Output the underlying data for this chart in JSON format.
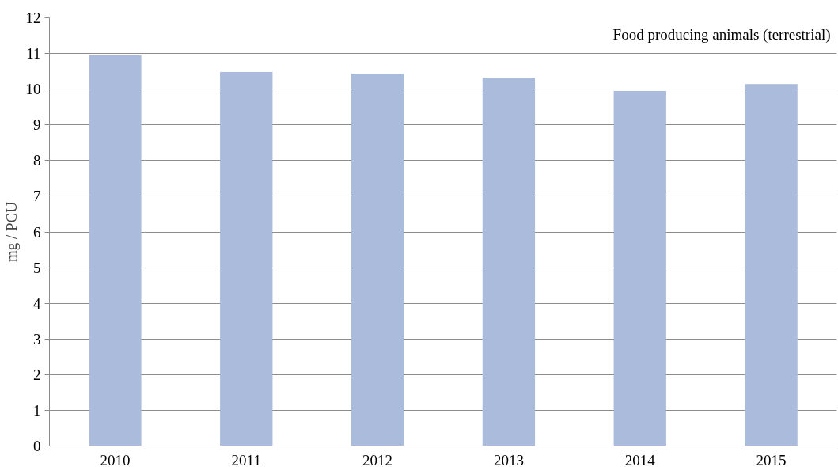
{
  "chart_data": {
    "type": "bar",
    "ylabel": "mg / PCU",
    "categories": [
      "2010",
      "2011",
      "2012",
      "2013",
      "2014",
      "2015"
    ],
    "values": [
      10.95,
      10.48,
      10.43,
      10.32,
      9.95,
      10.14
    ],
    "color": "#abbbdc",
    "ylim": [
      0,
      12
    ],
    "yticks": [
      0,
      1,
      2,
      3,
      4,
      5,
      6,
      7,
      8,
      9,
      10,
      11,
      12
    ],
    "grid": "y",
    "annotations": [
      "Food producing animals (terrestrial)"
    ]
  }
}
